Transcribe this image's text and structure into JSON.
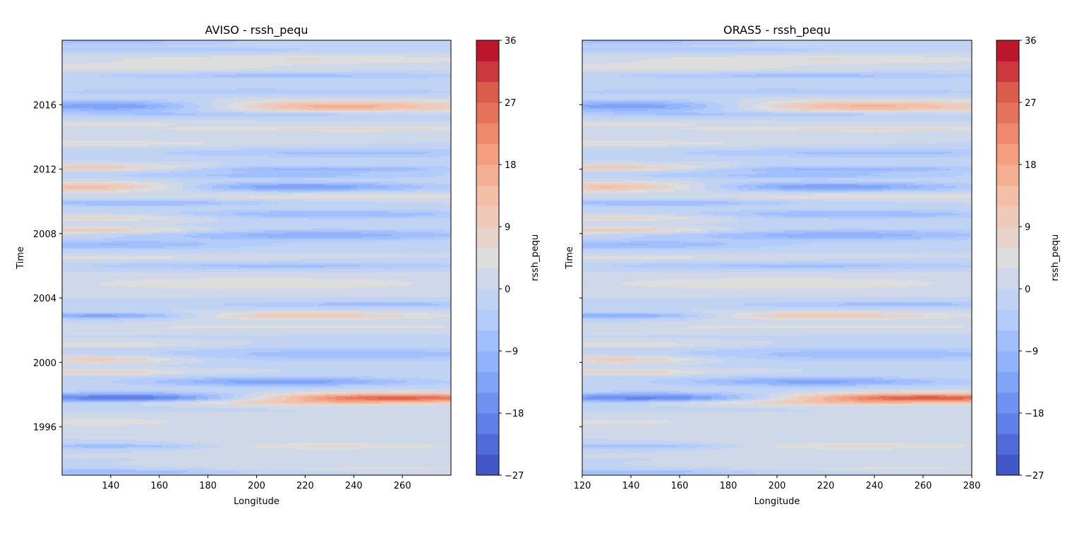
{
  "chart_data": [
    {
      "type": "heatmap",
      "title": "AVISO - rssh_pequ",
      "xlabel": "Longitude",
      "ylabel": "Time",
      "xlim": [
        120,
        280
      ],
      "ylim": [
        1993.0,
        2020.0
      ],
      "x_ticks": [
        140,
        160,
        180,
        200,
        220,
        240,
        260
      ],
      "y_ticks": [
        1996,
        2000,
        2004,
        2008,
        2012,
        2016
      ],
      "y_tick_labels_visible": true,
      "colorbar": {
        "label": "rssh_pequ",
        "vmin": -27,
        "vmax": 36,
        "levels": 21,
        "ticks": [
          -27,
          -18,
          -9,
          0,
          9,
          18,
          27,
          36
        ],
        "tick_labels": [
          "−27",
          "−18",
          "−9",
          "0",
          "9",
          "18",
          "27",
          "36"
        ],
        "colormap": "coolwarm"
      },
      "bands": [
        {
          "t": 1993.2,
          "amp": -9,
          "sigma": 0.15,
          "lon_center": 140,
          "lon_width": 40
        },
        {
          "t": 1993.4,
          "amp": 4,
          "sigma": 0.12,
          "lon_center": 250,
          "lon_width": 60
        },
        {
          "t": 1994.8,
          "amp": -10,
          "sigma": 0.12,
          "lon_center": 145,
          "lon_width": 35
        },
        {
          "t": 1994.8,
          "amp": 7,
          "sigma": 0.15,
          "lon_center": 220,
          "lon_width": 45
        },
        {
          "t": 1996.3,
          "amp": 5,
          "sigma": 0.2,
          "lon_center": 135,
          "lon_width": 30
        },
        {
          "t": 1997.5,
          "amp": 9,
          "sigma": 0.12,
          "lon_center": 200,
          "lon_width": 50
        },
        {
          "t": 1997.8,
          "amp": -22,
          "sigma": 0.22,
          "lon_center": 150,
          "lon_width": 40
        },
        {
          "t": 1997.8,
          "amp": 28,
          "sigma": 0.2,
          "lon_center": 255,
          "lon_width": 45
        },
        {
          "t": 1998.8,
          "amp": -14,
          "sigma": 0.2,
          "lon_center": 210,
          "lon_width": 40
        },
        {
          "t": 1999.4,
          "amp": 9,
          "sigma": 0.12,
          "lon_center": 135,
          "lon_width": 25
        },
        {
          "t": 2000.2,
          "amp": 11,
          "sigma": 0.15,
          "lon_center": 135,
          "lon_width": 25
        },
        {
          "t": 2000.5,
          "amp": -8,
          "sigma": 0.3,
          "lon_center": 240,
          "lon_width": 60
        },
        {
          "t": 2001.1,
          "amp": 6,
          "sigma": 0.12,
          "lon_center": 135,
          "lon_width": 30
        },
        {
          "t": 2002.2,
          "amp": 5,
          "sigma": 0.12,
          "lon_center": 220,
          "lon_width": 60
        },
        {
          "t": 2002.9,
          "amp": -15,
          "sigma": 0.13,
          "lon_center": 140,
          "lon_width": 30
        },
        {
          "t": 2002.9,
          "amp": 12,
          "sigma": 0.15,
          "lon_center": 215,
          "lon_width": 40
        },
        {
          "t": 2003.6,
          "amp": -7,
          "sigma": 0.15,
          "lon_center": 250,
          "lon_width": 50
        },
        {
          "t": 2004.9,
          "amp": 6,
          "sigma": 0.3,
          "lon_center": 200,
          "lon_width": 55
        },
        {
          "t": 2006.0,
          "amp": -7,
          "sigma": 0.15,
          "lon_center": 210,
          "lon_width": 60
        },
        {
          "t": 2006.5,
          "amp": 4,
          "sigma": 0.12,
          "lon_center": 140,
          "lon_width": 40
        },
        {
          "t": 2007.3,
          "amp": -9,
          "sigma": 0.2,
          "lon_center": 140,
          "lon_width": 40
        },
        {
          "t": 2007.9,
          "amp": -11,
          "sigma": 0.25,
          "lon_center": 225,
          "lon_width": 50
        },
        {
          "t": 2008.2,
          "amp": 11,
          "sigma": 0.13,
          "lon_center": 135,
          "lon_width": 30
        },
        {
          "t": 2009.0,
          "amp": 8,
          "sigma": 0.15,
          "lon_center": 135,
          "lon_width": 30
        },
        {
          "t": 2009.2,
          "amp": -9,
          "sigma": 0.2,
          "lon_center": 230,
          "lon_width": 50
        },
        {
          "t": 2009.9,
          "amp": -9,
          "sigma": 0.15,
          "lon_center": 150,
          "lon_width": 40
        },
        {
          "t": 2010.3,
          "amp": 5,
          "sigma": 0.15,
          "lon_center": 240,
          "lon_width": 60
        },
        {
          "t": 2010.9,
          "amp": 15,
          "sigma": 0.2,
          "lon_center": 135,
          "lon_width": 30
        },
        {
          "t": 2010.9,
          "amp": -15,
          "sigma": 0.2,
          "lon_center": 215,
          "lon_width": 40
        },
        {
          "t": 2011.6,
          "amp": -7,
          "sigma": 0.15,
          "lon_center": 210,
          "lon_width": 50
        },
        {
          "t": 2012.1,
          "amp": 12,
          "sigma": 0.13,
          "lon_center": 135,
          "lon_width": 30
        },
        {
          "t": 2012.0,
          "amp": -10,
          "sigma": 0.15,
          "lon_center": 225,
          "lon_width": 45
        },
        {
          "t": 2013.0,
          "amp": -7,
          "sigma": 0.2,
          "lon_center": 240,
          "lon_width": 60
        },
        {
          "t": 2013.6,
          "amp": 5,
          "sigma": 0.15,
          "lon_center": 140,
          "lon_width": 40
        },
        {
          "t": 2014.5,
          "amp": 7,
          "sigma": 0.12,
          "lon_center": 240,
          "lon_width": 60
        },
        {
          "t": 2014.8,
          "amp": 5,
          "sigma": 0.12,
          "lon_center": 135,
          "lon_width": 30
        },
        {
          "t": 2015.4,
          "amp": -6,
          "sigma": 0.12,
          "lon_center": 200,
          "lon_width": 60
        },
        {
          "t": 2015.9,
          "amp": -17,
          "sigma": 0.25,
          "lon_center": 145,
          "lon_width": 35
        },
        {
          "t": 2015.9,
          "amp": 17,
          "sigma": 0.25,
          "lon_center": 230,
          "lon_width": 45
        },
        {
          "t": 2016.8,
          "amp": -6,
          "sigma": 0.15,
          "lon_center": 200,
          "lon_width": 70
        },
        {
          "t": 2017.8,
          "amp": -7,
          "sigma": 0.15,
          "lon_center": 210,
          "lon_width": 60
        },
        {
          "t": 2018.3,
          "amp": 5,
          "sigma": 0.2,
          "lon_center": 150,
          "lon_width": 50
        },
        {
          "t": 2018.8,
          "amp": 6,
          "sigma": 0.2,
          "lon_center": 220,
          "lon_width": 60
        },
        {
          "t": 2019.4,
          "amp": -5,
          "sigma": 0.15,
          "lon_center": 160,
          "lon_width": 60
        },
        {
          "t": 2019.9,
          "amp": -7,
          "sigma": 0.15,
          "lon_center": 140,
          "lon_width": 40
        }
      ]
    },
    {
      "type": "heatmap",
      "title": "ORAS5 - rssh_pequ",
      "xlabel": "Longitude",
      "ylabel": "Time",
      "xlim": [
        120,
        280
      ],
      "ylim": [
        1993.0,
        2020.0
      ],
      "x_ticks": [
        120,
        140,
        160,
        180,
        200,
        220,
        240,
        260,
        280
      ],
      "y_ticks": [
        1996,
        2000,
        2004,
        2008,
        2012,
        2016
      ],
      "y_tick_labels_visible": false,
      "colorbar": {
        "label": "rssh_pequ",
        "vmin": -27,
        "vmax": 36,
        "levels": 21,
        "ticks": [
          -27,
          -18,
          -9,
          0,
          9,
          18,
          27,
          36
        ],
        "tick_labels": [
          "−27",
          "−18",
          "−9",
          "0",
          "9",
          "18",
          "27",
          "36"
        ],
        "colormap": "coolwarm"
      },
      "bands": [
        {
          "t": 1993.2,
          "amp": -8,
          "sigma": 0.15,
          "lon_center": 140,
          "lon_width": 40
        },
        {
          "t": 1993.4,
          "amp": 4,
          "sigma": 0.12,
          "lon_center": 250,
          "lon_width": 60
        },
        {
          "t": 1994.8,
          "amp": -9,
          "sigma": 0.12,
          "lon_center": 145,
          "lon_width": 35
        },
        {
          "t": 1994.8,
          "amp": 7,
          "sigma": 0.15,
          "lon_center": 225,
          "lon_width": 45
        },
        {
          "t": 1996.3,
          "amp": 4,
          "sigma": 0.2,
          "lon_center": 135,
          "lon_width": 30
        },
        {
          "t": 1997.5,
          "amp": 9,
          "sigma": 0.12,
          "lon_center": 200,
          "lon_width": 50
        },
        {
          "t": 1997.8,
          "amp": -20,
          "sigma": 0.22,
          "lon_center": 150,
          "lon_width": 40
        },
        {
          "t": 1997.8,
          "amp": 29,
          "sigma": 0.2,
          "lon_center": 260,
          "lon_width": 45
        },
        {
          "t": 1998.8,
          "amp": -13,
          "sigma": 0.2,
          "lon_center": 215,
          "lon_width": 40
        },
        {
          "t": 1999.4,
          "amp": 9,
          "sigma": 0.12,
          "lon_center": 135,
          "lon_width": 25
        },
        {
          "t": 2000.2,
          "amp": 11,
          "sigma": 0.15,
          "lon_center": 135,
          "lon_width": 25
        },
        {
          "t": 2000.5,
          "amp": -8,
          "sigma": 0.3,
          "lon_center": 240,
          "lon_width": 60
        },
        {
          "t": 2001.1,
          "amp": 6,
          "sigma": 0.12,
          "lon_center": 135,
          "lon_width": 30
        },
        {
          "t": 2002.2,
          "amp": 5,
          "sigma": 0.12,
          "lon_center": 220,
          "lon_width": 60
        },
        {
          "t": 2002.9,
          "amp": -14,
          "sigma": 0.13,
          "lon_center": 140,
          "lon_width": 30
        },
        {
          "t": 2002.9,
          "amp": 12,
          "sigma": 0.15,
          "lon_center": 215,
          "lon_width": 40
        },
        {
          "t": 2003.6,
          "amp": -7,
          "sigma": 0.15,
          "lon_center": 250,
          "lon_width": 50
        },
        {
          "t": 2004.9,
          "amp": 6,
          "sigma": 0.3,
          "lon_center": 200,
          "lon_width": 55
        },
        {
          "t": 2006.0,
          "amp": -7,
          "sigma": 0.15,
          "lon_center": 210,
          "lon_width": 60
        },
        {
          "t": 2006.5,
          "amp": 4,
          "sigma": 0.12,
          "lon_center": 140,
          "lon_width": 40
        },
        {
          "t": 2007.3,
          "amp": -9,
          "sigma": 0.2,
          "lon_center": 140,
          "lon_width": 40
        },
        {
          "t": 2007.9,
          "amp": -11,
          "sigma": 0.25,
          "lon_center": 225,
          "lon_width": 50
        },
        {
          "t": 2008.2,
          "amp": 11,
          "sigma": 0.13,
          "lon_center": 135,
          "lon_width": 30
        },
        {
          "t": 2009.0,
          "amp": 8,
          "sigma": 0.15,
          "lon_center": 135,
          "lon_width": 30
        },
        {
          "t": 2009.2,
          "amp": -9,
          "sigma": 0.2,
          "lon_center": 230,
          "lon_width": 50
        },
        {
          "t": 2009.9,
          "amp": -9,
          "sigma": 0.15,
          "lon_center": 150,
          "lon_width": 40
        },
        {
          "t": 2010.3,
          "amp": 5,
          "sigma": 0.15,
          "lon_center": 240,
          "lon_width": 60
        },
        {
          "t": 2010.9,
          "amp": 14,
          "sigma": 0.2,
          "lon_center": 135,
          "lon_width": 30
        },
        {
          "t": 2010.9,
          "amp": -15,
          "sigma": 0.2,
          "lon_center": 220,
          "lon_width": 40
        },
        {
          "t": 2011.6,
          "amp": -7,
          "sigma": 0.15,
          "lon_center": 210,
          "lon_width": 50
        },
        {
          "t": 2012.1,
          "amp": 12,
          "sigma": 0.13,
          "lon_center": 135,
          "lon_width": 30
        },
        {
          "t": 2012.0,
          "amp": -10,
          "sigma": 0.15,
          "lon_center": 225,
          "lon_width": 45
        },
        {
          "t": 2013.0,
          "amp": -7,
          "sigma": 0.2,
          "lon_center": 240,
          "lon_width": 60
        },
        {
          "t": 2013.6,
          "amp": 5,
          "sigma": 0.15,
          "lon_center": 140,
          "lon_width": 40
        },
        {
          "t": 2014.5,
          "amp": 7,
          "sigma": 0.12,
          "lon_center": 240,
          "lon_width": 60
        },
        {
          "t": 2014.8,
          "amp": 5,
          "sigma": 0.12,
          "lon_center": 135,
          "lon_width": 30
        },
        {
          "t": 2015.4,
          "amp": -6,
          "sigma": 0.12,
          "lon_center": 200,
          "lon_width": 60
        },
        {
          "t": 2015.9,
          "amp": -16,
          "sigma": 0.25,
          "lon_center": 145,
          "lon_width": 35
        },
        {
          "t": 2015.9,
          "amp": 16,
          "sigma": 0.25,
          "lon_center": 235,
          "lon_width": 45
        },
        {
          "t": 2016.8,
          "amp": -6,
          "sigma": 0.15,
          "lon_center": 200,
          "lon_width": 70
        },
        {
          "t": 2017.8,
          "amp": -7,
          "sigma": 0.15,
          "lon_center": 210,
          "lon_width": 60
        },
        {
          "t": 2018.3,
          "amp": 5,
          "sigma": 0.2,
          "lon_center": 150,
          "lon_width": 50
        },
        {
          "t": 2018.8,
          "amp": 6,
          "sigma": 0.2,
          "lon_center": 220,
          "lon_width": 60
        },
        {
          "t": 2019.4,
          "amp": -5,
          "sigma": 0.15,
          "lon_center": 160,
          "lon_width": 60
        },
        {
          "t": 2019.9,
          "amp": -7,
          "sigma": 0.15,
          "lon_center": 140,
          "lon_width": 40
        }
      ]
    }
  ]
}
